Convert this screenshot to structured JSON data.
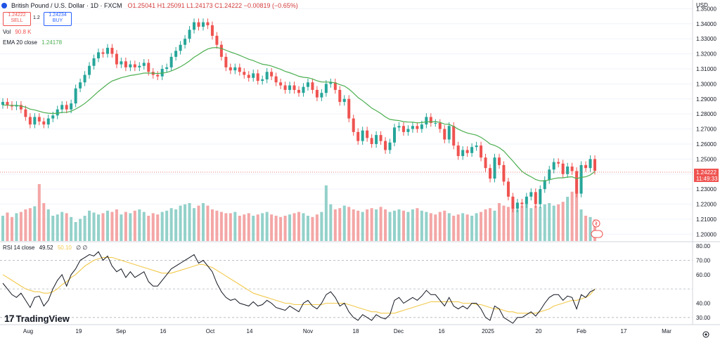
{
  "header": {
    "symbol": "British Pound / U.S. Dollar · 1D · FXCM",
    "ohlc": "O1.25041 H1.25091 L1.24173 C1.24222 −0.00819 (−0.65%)",
    "sell_price": "1.24222",
    "sell_label": "SELL",
    "spread": "1.2",
    "buy_price": "1.24234",
    "buy_label": "BUY",
    "vol_label": "Vol",
    "vol_value": "90.8 K",
    "ema_label": "EMA 20 close",
    "ema_value": "1.24178",
    "rsi_label": "RSI 14 close",
    "rsi_value": "49.52",
    "rsi_ma": "50.10",
    "rsi_extra": "∅ ∅"
  },
  "price_axis": {
    "currency": "USD",
    "last_price": "1.24222",
    "countdown": "11:49:33"
  },
  "logo_text": "TradingView",
  "colors": {
    "up": "#26a69a",
    "down": "#ef5350",
    "ema": "#4caf50",
    "rsi": "#131722",
    "rsi_ma": "#f2c94c",
    "vol_up": "#93d1ca",
    "vol_down": "#f4a6a6"
  },
  "chart_data": [
    {
      "type": "candlestick",
      "title": "British Pound / U.S. Dollar · 1D · FXCM",
      "ylim": [
        1.195,
        1.353
      ],
      "yticks": [
        "1.20000",
        "1.21000",
        "1.22000",
        "1.23000",
        "1.24000",
        "1.25000",
        "1.26000",
        "1.27000",
        "1.28000",
        "1.29000",
        "1.30000",
        "1.31000",
        "1.32000",
        "1.33000",
        "1.34000",
        "1.35000"
      ],
      "xticks": [
        "Aug",
        "19",
        "Sep",
        "16",
        "Oct",
        "14",
        "Nov",
        "18",
        "Dec",
        "16",
        "2025",
        "20",
        "Feb",
        "17",
        "Mar"
      ],
      "closes": [
        1.288,
        1.286,
        1.285,
        1.286,
        1.283,
        1.278,
        1.273,
        1.278,
        1.275,
        1.273,
        1.277,
        1.279,
        1.283,
        1.286,
        1.283,
        1.287,
        1.297,
        1.301,
        1.306,
        1.312,
        1.317,
        1.321,
        1.32,
        1.324,
        1.32,
        1.313,
        1.315,
        1.311,
        1.313,
        1.311,
        1.312,
        1.314,
        1.308,
        1.306,
        1.305,
        1.31,
        1.311,
        1.318,
        1.322,
        1.326,
        1.33,
        1.336,
        1.341,
        1.338,
        1.341,
        1.339,
        1.332,
        1.326,
        1.318,
        1.311,
        1.309,
        1.311,
        1.308,
        1.306,
        1.304,
        1.307,
        1.302,
        1.303,
        1.308,
        1.305,
        1.301,
        1.299,
        1.296,
        1.299,
        1.296,
        1.294,
        1.298,
        1.301,
        1.296,
        1.291,
        1.294,
        1.3,
        1.301,
        1.296,
        1.288,
        1.29,
        1.277,
        1.268,
        1.262,
        1.269,
        1.264,
        1.26,
        1.266,
        1.262,
        1.256,
        1.261,
        1.271,
        1.272,
        1.268,
        1.27,
        1.272,
        1.27,
        1.273,
        1.278,
        1.274,
        1.274,
        1.27,
        1.263,
        1.272,
        1.259,
        1.252,
        1.256,
        1.254,
        1.258,
        1.259,
        1.251,
        1.244,
        1.237,
        1.251,
        1.246,
        1.235,
        1.225,
        1.217,
        1.221,
        1.22,
        1.225,
        1.228,
        1.22,
        1.23,
        1.236,
        1.243,
        1.248,
        1.247,
        1.24,
        1.245,
        1.242,
        1.227,
        1.246,
        1.244,
        1.25,
        1.2422
      ],
      "ema20": [
        1.286,
        1.2858,
        1.2857,
        1.2856,
        1.2853,
        1.2845,
        1.2832,
        1.2827,
        1.2818,
        1.2809,
        1.2805,
        1.2803,
        1.2805,
        1.281,
        1.2811,
        1.2818,
        1.2833,
        1.285,
        1.287,
        1.2895,
        1.2922,
        1.295,
        1.2974,
        1.2999,
        1.3019,
        1.303,
        1.3041,
        1.3048,
        1.3056,
        1.306,
        1.3066,
        1.3072,
        1.3072,
        1.3071,
        1.3069,
        1.3072,
        1.3076,
        1.3086,
        1.3099,
        1.3114,
        1.3132,
        1.3153,
        1.3177,
        1.3196,
        1.3216,
        1.3232,
        1.324,
        1.3242,
        1.3236,
        1.3224,
        1.3212,
        1.3202,
        1.319,
        1.3177,
        1.3164,
        1.3155,
        1.3142,
        1.3131,
        1.3126,
        1.3119,
        1.3108,
        1.3097,
        1.3083,
        1.3074,
        1.3063,
        1.3051,
        1.3044,
        1.3041,
        1.3033,
        1.3021,
        1.3013,
        1.3012,
        1.3012,
        1.3007,
        1.2995,
        1.2986,
        1.2966,
        1.2939,
        1.2909,
        1.2888,
        1.2864,
        1.2839,
        1.2822,
        1.2803,
        1.278,
        1.2764,
        1.2759,
        1.2756,
        1.2749,
        1.2746,
        1.2745,
        1.2741,
        1.2743,
        1.2748,
        1.2748,
        1.2749,
        1.2744,
        1.2732,
        1.2731,
        1.2717,
        1.2699,
        1.2685,
        1.2673,
        1.2666,
        1.2659,
        1.2644,
        1.2624,
        1.26,
        1.2591,
        1.2576,
        1.2553,
        1.252,
        1.2487,
        1.2451,
        1.2418,
        1.2398,
        1.2382,
        1.2364,
        1.2355,
        1.2355,
        1.2362,
        1.237,
        1.2375,
        1.2375,
        1.238,
        1.2382,
        1.237,
        1.2378,
        1.2382,
        1.2394,
        1.2418
      ]
    },
    {
      "type": "bar",
      "title": "Vol",
      "ylim": [
        0,
        100
      ],
      "values": [
        40,
        45,
        38,
        44,
        46,
        50,
        52,
        55,
        90,
        60,
        50,
        40,
        42,
        46,
        44,
        38,
        30,
        35,
        40,
        48,
        45,
        42,
        44,
        48,
        46,
        50,
        42,
        46,
        44,
        48,
        50,
        46,
        40,
        44,
        42,
        46,
        48,
        52,
        50,
        56,
        58,
        60,
        52,
        56,
        60,
        56,
        50,
        48,
        46,
        44,
        44,
        46,
        40,
        42,
        44,
        40,
        42,
        44,
        46,
        42,
        40,
        38,
        40,
        42,
        44,
        46,
        44,
        40,
        38,
        42,
        46,
        88,
        58,
        50,
        52,
        56,
        54,
        50,
        48,
        46,
        50,
        52,
        50,
        54,
        50,
        46,
        48,
        50,
        48,
        46,
        50,
        52,
        48,
        46,
        44,
        42,
        46,
        48,
        44,
        40,
        42,
        44,
        42,
        40,
        44,
        46,
        50,
        52,
        48,
        60,
        56,
        54,
        52,
        50,
        56,
        58,
        52,
        56,
        54,
        58,
        60,
        56,
        58,
        62,
        70,
        78,
        80,
        50,
        40,
        38,
        34
      ],
      "ups": [
        1,
        0,
        0,
        1,
        0,
        0,
        0,
        1,
        0,
        0,
        1,
        1,
        1,
        1,
        0,
        1,
        1,
        1,
        1,
        1,
        1,
        1,
        0,
        1,
        0,
        0,
        1,
        0,
        1,
        0,
        1,
        1,
        0,
        0,
        0,
        1,
        1,
        1,
        1,
        1,
        1,
        1,
        1,
        0,
        1,
        0,
        0,
        0,
        0,
        0,
        0,
        1,
        0,
        0,
        0,
        1,
        0,
        1,
        1,
        0,
        0,
        0,
        0,
        1,
        0,
        0,
        1,
        1,
        0,
        0,
        1,
        1,
        1,
        0,
        0,
        1,
        0,
        0,
        0,
        1,
        0,
        0,
        1,
        0,
        0,
        1,
        1,
        1,
        0,
        1,
        1,
        0,
        1,
        1,
        0,
        0,
        0,
        0,
        1,
        0,
        0,
        1,
        0,
        1,
        1,
        0,
        0,
        0,
        1,
        0,
        0,
        0,
        0,
        1,
        0,
        1,
        1,
        0,
        1,
        1,
        1,
        1,
        0,
        0,
        1,
        0,
        0,
        1,
        0,
        1,
        0
      ]
    },
    {
      "type": "line",
      "title": "RSI 14 close",
      "ylim": [
        25,
        82
      ],
      "yticks": [
        "30.00",
        "40.00",
        "50.00",
        "60.00",
        "70.00",
        "80.00"
      ],
      "values": [
        54,
        50,
        46,
        44,
        47,
        42,
        37,
        44,
        45,
        38,
        42,
        50,
        56,
        60,
        52,
        60,
        64,
        70,
        72,
        74,
        73,
        76,
        70,
        73,
        66,
        62,
        64,
        58,
        62,
        58,
        60,
        62,
        55,
        52,
        52,
        56,
        60,
        64,
        66,
        68,
        70,
        72,
        74,
        68,
        70,
        66,
        62,
        54,
        48,
        44,
        42,
        43,
        40,
        39,
        38,
        41,
        38,
        39,
        42,
        40,
        37,
        36,
        35,
        38,
        36,
        34,
        40,
        42,
        38,
        36,
        40,
        46,
        48,
        44,
        38,
        40,
        34,
        30,
        28,
        32,
        30,
        28,
        32,
        30,
        29,
        32,
        42,
        44,
        40,
        42,
        44,
        42,
        45,
        49,
        46,
        46,
        42,
        38,
        44,
        38,
        36,
        38,
        36,
        40,
        40,
        36,
        30,
        28,
        38,
        36,
        30,
        28,
        26,
        30,
        30,
        32,
        34,
        31,
        35,
        40,
        44,
        46,
        46,
        42,
        45,
        44,
        36,
        46,
        44,
        48,
        49.5
      ],
      "ma_values": [
        60,
        58,
        56,
        54,
        52,
        50,
        49,
        48,
        48,
        47,
        47,
        48,
        50,
        53,
        55,
        58,
        60,
        63,
        66,
        68,
        70,
        71,
        72,
        72,
        72,
        71,
        70,
        69,
        68,
        67,
        66,
        65,
        64,
        63,
        62,
        61,
        61,
        61,
        62,
        63,
        64,
        65,
        66,
        67,
        67,
        66,
        65,
        63,
        61,
        59,
        57,
        55,
        53,
        51,
        49,
        47,
        46,
        45,
        44,
        43,
        42,
        41,
        40,
        40,
        39,
        39,
        39,
        39,
        39,
        39,
        39,
        40,
        40,
        40,
        40,
        40,
        39,
        38,
        37,
        36,
        35,
        34,
        34,
        33,
        33,
        33,
        33,
        34,
        35,
        36,
        37,
        38,
        39,
        40,
        41,
        41,
        41,
        41,
        41,
        41,
        41,
        40,
        40,
        40,
        39,
        39,
        38,
        37,
        36,
        36,
        35,
        34,
        34,
        33,
        33,
        33,
        33,
        33,
        34,
        35,
        36,
        38,
        39,
        40,
        41,
        42,
        42,
        43,
        44,
        46,
        50.1
      ]
    }
  ]
}
